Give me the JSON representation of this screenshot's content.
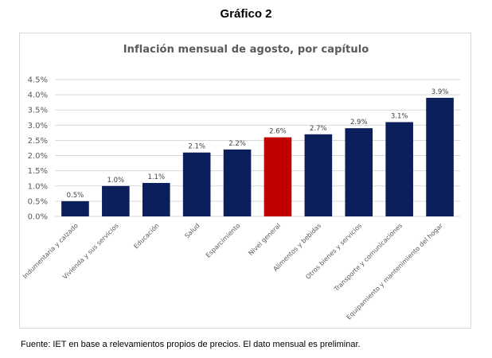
{
  "figure": {
    "title": "Gráfico 2",
    "source": "Fuente: IET en base a relevamientos propios de precios. El dato mensual es preliminar."
  },
  "colors": {
    "bar": "#0b1f5c",
    "highlight": "#c00000",
    "grid": "#d9d9d9"
  },
  "chart_data": {
    "type": "bar",
    "title": "Inflación mensual de agosto, por capítulo",
    "xlabel": "",
    "ylabel": "",
    "ylim": [
      0,
      4.5
    ],
    "yticks": [
      0,
      0.5,
      1.0,
      1.5,
      2.0,
      2.5,
      3.0,
      3.5,
      4.0,
      4.5
    ],
    "ytick_labels": [
      "0.0%",
      "0.5%",
      "1.0%",
      "1.5%",
      "2.0%",
      "2.5%",
      "3.0%",
      "3.5%",
      "4.0%",
      "4.5%"
    ],
    "grid": "horizontal",
    "categories": [
      "Indumentaria y calzado",
      "Vivienda y sus servicios",
      "Educación",
      "Salud",
      "Esparcimiento",
      "Nivel general",
      "Alimentos y bebidas",
      "Otros bienes y servicios",
      "Transporte y comunicaciones",
      "Equipamiento y mantenimiento del hogar"
    ],
    "values": [
      0.5,
      1.0,
      1.1,
      2.1,
      2.2,
      2.6,
      2.7,
      2.9,
      3.1,
      3.9
    ],
    "data_labels": [
      "0.5%",
      "1.0%",
      "1.1%",
      "2.1%",
      "2.2%",
      "2.6%",
      "2.7%",
      "2.9%",
      "3.1%",
      "3.9%"
    ],
    "highlight_category": "Nivel general"
  }
}
